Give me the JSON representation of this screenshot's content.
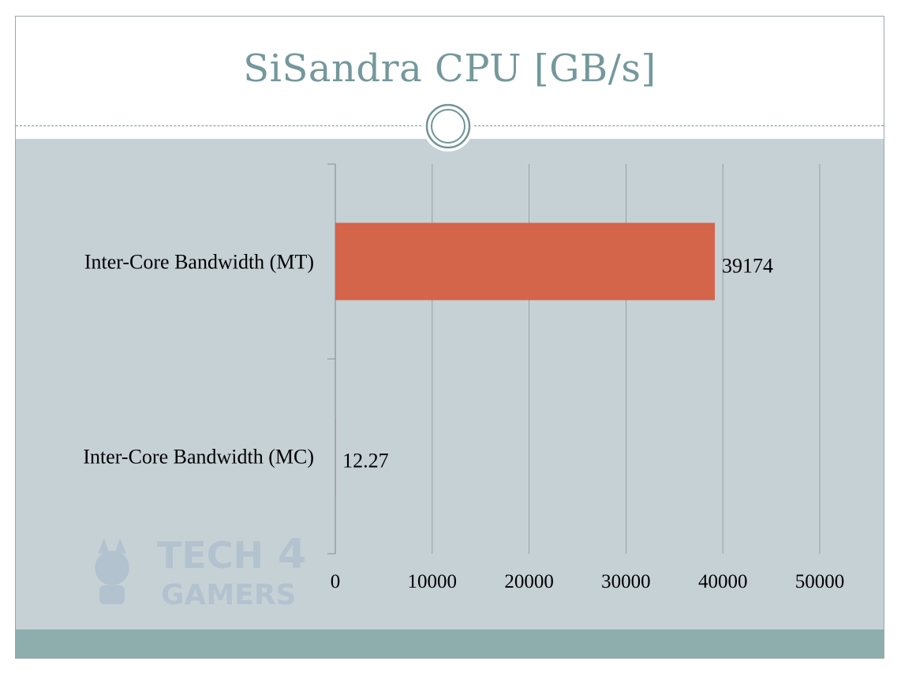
{
  "chart_data": {
    "type": "bar",
    "orientation": "horizontal",
    "title": "SiSandra CPU [GB/s]",
    "categories": [
      "Inter-Core Bandwidth (MT)",
      "Inter-Core Bandwidth (MC)"
    ],
    "values": [
      39174,
      12.27
    ],
    "value_labels": [
      "39174",
      "12.27"
    ],
    "xlim": [
      0,
      50000
    ],
    "x_ticks": [
      0,
      10000,
      20000,
      30000,
      40000,
      50000
    ],
    "x_tick_labels": [
      "0",
      "10000",
      "20000",
      "30000",
      "40000",
      "50000"
    ],
    "grid": true,
    "legend": "none",
    "bar_color": "#d4644a"
  },
  "colors": {
    "title": "#74989c",
    "plot_background": "#c6d1d6",
    "footer_band": "#8eaeae",
    "grid": "#8a9296"
  },
  "watermark": {
    "line1": "TECH",
    "digit": "4",
    "line2": "GAMERS"
  }
}
